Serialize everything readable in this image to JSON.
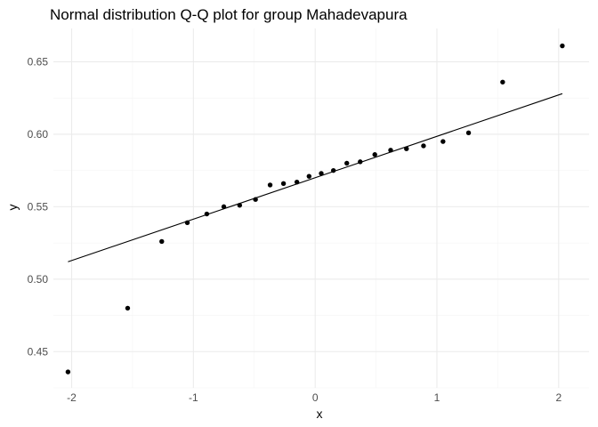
{
  "chart_data": {
    "type": "scatter",
    "title": "Normal distribution Q-Q plot for group Mahadevapura",
    "xlabel": "x",
    "ylabel": "y",
    "xlim": [
      -2.15,
      2.25
    ],
    "ylim": [
      0.425,
      0.673
    ],
    "x_ticks": [
      -2,
      -1,
      0,
      1,
      2
    ],
    "x_tick_labels": [
      "-2",
      "-1",
      "0",
      "1",
      "2"
    ],
    "y_ticks": [
      0.45,
      0.5,
      0.55,
      0.6,
      0.65
    ],
    "y_tick_labels": [
      "0.45",
      "0.50",
      "0.55",
      "0.60",
      "0.65"
    ],
    "grid": true,
    "legend": "none",
    "points": {
      "x": [
        -2.03,
        -1.54,
        -1.26,
        -1.05,
        -0.89,
        -0.75,
        -0.62,
        -0.49,
        -0.37,
        -0.26,
        -0.15,
        -0.05,
        0.05,
        0.15,
        0.26,
        0.37,
        0.49,
        0.62,
        0.75,
        0.89,
        1.05,
        1.26,
        1.54,
        2.03
      ],
      "y": [
        0.436,
        0.48,
        0.526,
        0.539,
        0.545,
        0.55,
        0.551,
        0.555,
        0.565,
        0.566,
        0.567,
        0.571,
        0.573,
        0.575,
        0.58,
        0.581,
        0.586,
        0.589,
        0.59,
        0.592,
        0.595,
        0.601,
        0.636,
        0.661
      ]
    },
    "reference_line": {
      "x": [
        -2.03,
        2.03
      ],
      "y": [
        0.512,
        0.628
      ]
    },
    "colors": {
      "points": "#000000",
      "line": "#000000",
      "grid": "#ebebeb",
      "tick_text": "#4d4d4d"
    }
  }
}
